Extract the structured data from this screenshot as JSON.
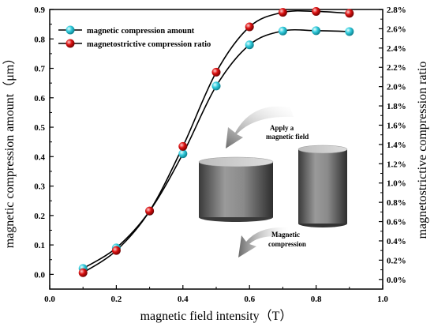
{
  "chart_data": {
    "type": "line",
    "xlabel": "magnetic field intensity（T）",
    "ylabel_left": "magnetic compression amount（μm）",
    "ylabel_right": "magnetostrictive compression ratio",
    "xlim": [
      0.0,
      1.0
    ],
    "ylim_left": [
      -0.05,
      0.9
    ],
    "ylim_right": [
      -0.1,
      2.8
    ],
    "x_ticks": [
      "0.0",
      "0.2",
      "0.4",
      "0.6",
      "0.8",
      "1.0"
    ],
    "y_left_ticks": [
      "0.0",
      "0.1",
      "0.2",
      "0.3",
      "0.4",
      "0.5",
      "0.6",
      "0.7",
      "0.8",
      "0.9"
    ],
    "y_right_ticks": [
      "0.0%",
      "0.2%",
      "0.4%",
      "0.6%",
      "0.8%",
      "1.0%",
      "1.2%",
      "1.4%",
      "1.6%",
      "1.8%",
      "2.0%",
      "2.2%",
      "2.4%",
      "2.6%",
      "2.8%"
    ],
    "legend_position": "top-left",
    "series": [
      {
        "name": "magnetic compression amount",
        "axis": "left",
        "color": "#33ccdd",
        "x": [
          0.1,
          0.2,
          0.3,
          0.4,
          0.5,
          0.6,
          0.7,
          0.8,
          0.9
        ],
        "y": [
          0.02,
          0.09,
          0.215,
          0.41,
          0.64,
          0.78,
          0.827,
          0.828,
          0.825
        ]
      },
      {
        "name": "magnetostrictive compression ratio",
        "axis": "right",
        "color": "#dd1111",
        "x": [
          0.1,
          0.2,
          0.3,
          0.4,
          0.5,
          0.6,
          0.7,
          0.8,
          0.9
        ],
        "y": [
          0.07,
          0.3,
          0.71,
          1.38,
          2.15,
          2.62,
          2.77,
          2.78,
          2.76
        ]
      }
    ],
    "annotations": {
      "apply_line1": "Apply a",
      "apply_line2": "magnetic field",
      "compress_line1": "Magnetic",
      "compress_line2": "compression"
    }
  }
}
